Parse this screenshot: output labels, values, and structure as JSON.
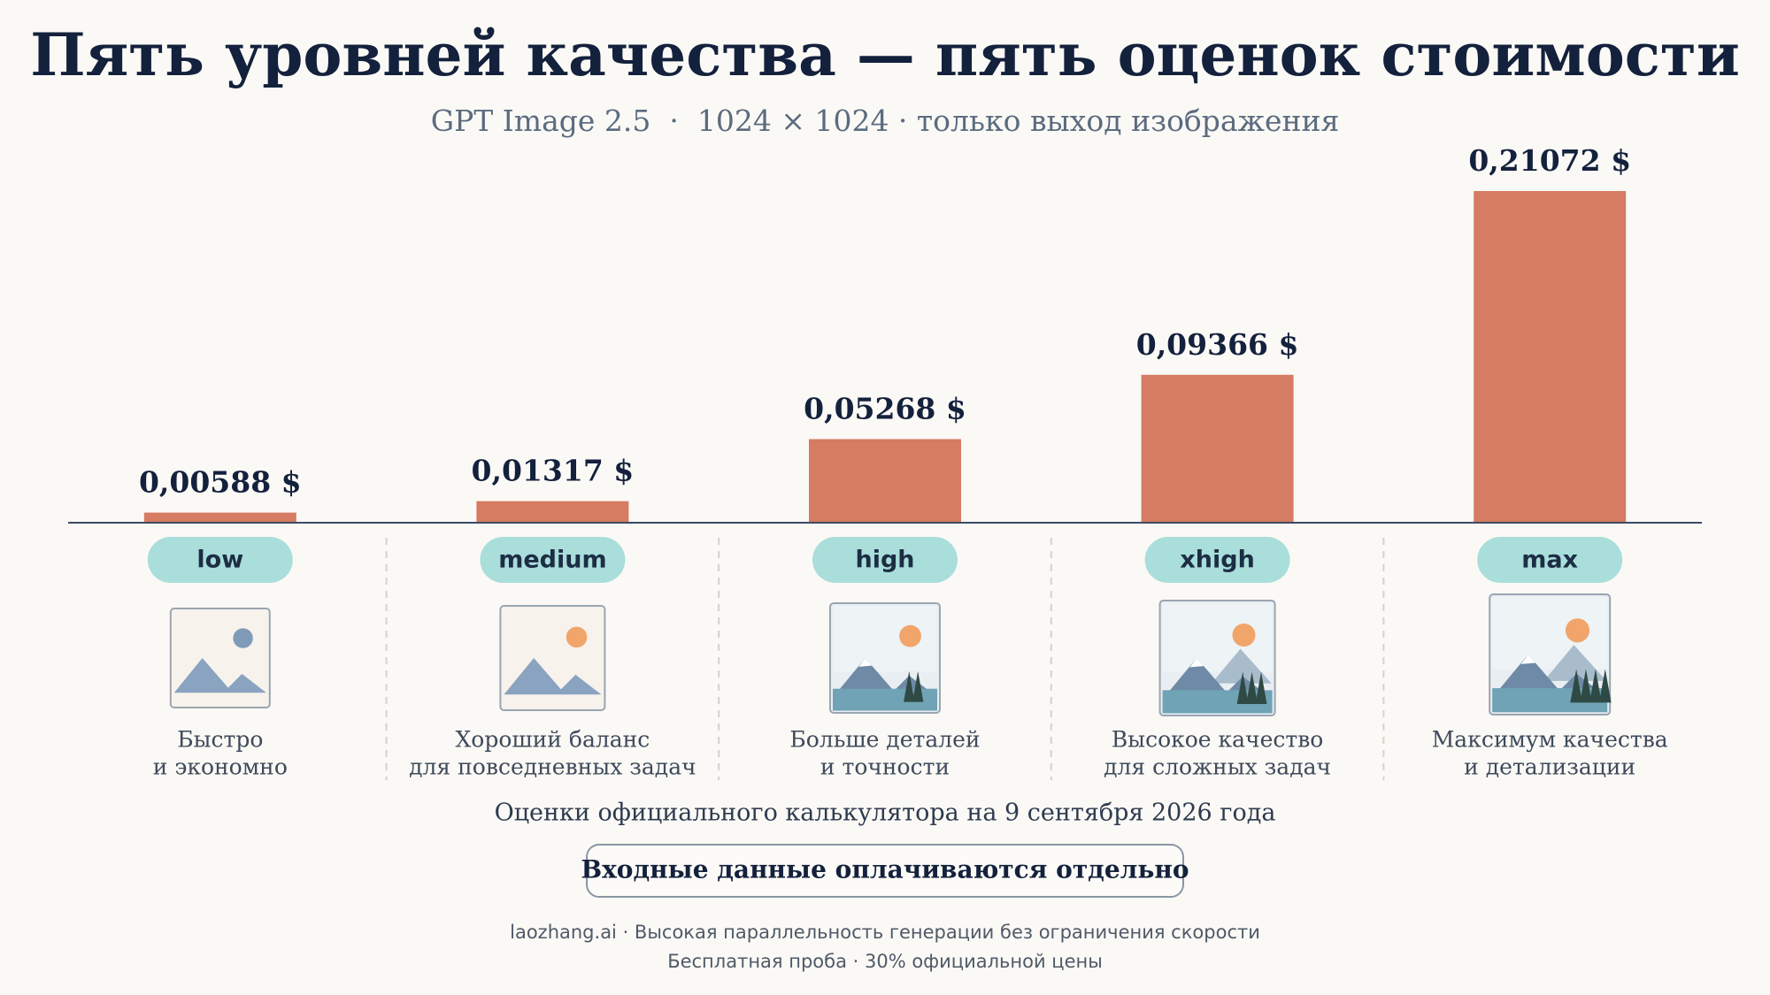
{
  "chart_data": {
    "type": "bar",
    "title": "Пять уровней качества — пять оценок стоимости",
    "subtitle": "GPT Image 2.5  ·  1024 × 1024 · только выход изображения",
    "categories": [
      "low",
      "medium",
      "high",
      "xhigh",
      "max"
    ],
    "values": [
      0.00588,
      0.01317,
      0.05268,
      0.09366,
      0.21072
    ],
    "value_labels": [
      "0,00588 $",
      "0,01317 $",
      "0,05268 $",
      "0,09366 $",
      "0,21072 $"
    ],
    "color": "#d57c62",
    "descriptions": [
      [
        "Быстро",
        "и экономно"
      ],
      [
        "Хороший баланс",
        "для повседневных задач"
      ],
      [
        "Больше деталей",
        "и точности"
      ],
      [
        "Высокое качество",
        "для сложных задач"
      ],
      [
        "Максимум качества",
        "и детализации"
      ]
    ],
    "note": "Оценки официального калькулятора на 9 сентября 2026 года",
    "button": "Входные данные оплачиваются отдельно",
    "footer": [
      "laozhang.ai · Высокая параллельность генерации без ограничения скорости",
      "Бесплатная проба · 30% официальной цены"
    ]
  }
}
